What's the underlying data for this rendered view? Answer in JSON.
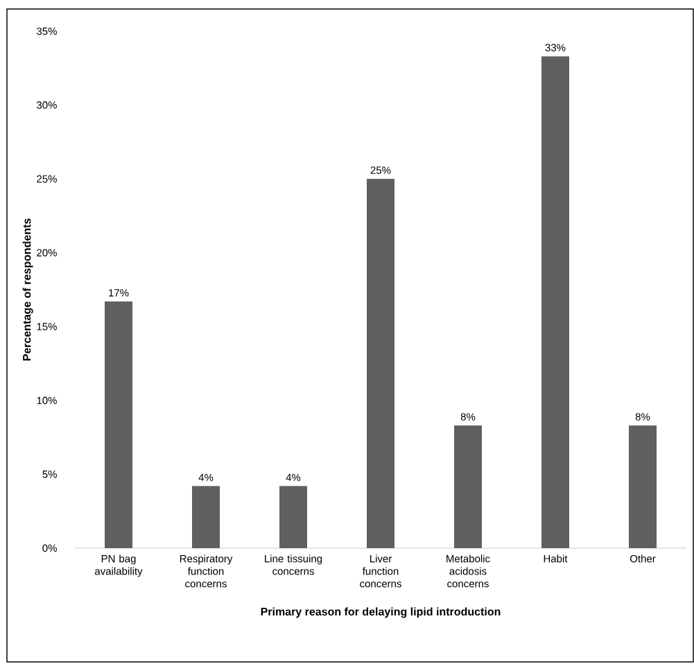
{
  "chart_data": {
    "type": "bar",
    "xlabel": "Primary reason for delaying lipid introduction",
    "ylabel": "Percentage of respondents",
    "categories": [
      "PN bag availability",
      "Respiratory function concerns",
      "Line tissuing concerns",
      "Liver function concerns",
      "Metabolic acidosis concerns",
      "Habit",
      "Other"
    ],
    "values": [
      16.7,
      4.2,
      4.2,
      25,
      8.3,
      33.3,
      8.3
    ],
    "value_labels": [
      "17%",
      "4%",
      "4%",
      "25%",
      "8%",
      "33%",
      "8%"
    ],
    "color": "#5f5f5f",
    "ylim": [
      0,
      35
    ],
    "yticks": [
      {
        "value": 0,
        "label": "0%"
      },
      {
        "value": 5,
        "label": "5%"
      },
      {
        "value": 10,
        "label": "10%"
      },
      {
        "value": 15,
        "label": "15%"
      },
      {
        "value": 20,
        "label": "20%"
      },
      {
        "value": 25,
        "label": "25%"
      },
      {
        "value": 30,
        "label": "30%"
      },
      {
        "value": 35,
        "label": "35%"
      }
    ]
  }
}
